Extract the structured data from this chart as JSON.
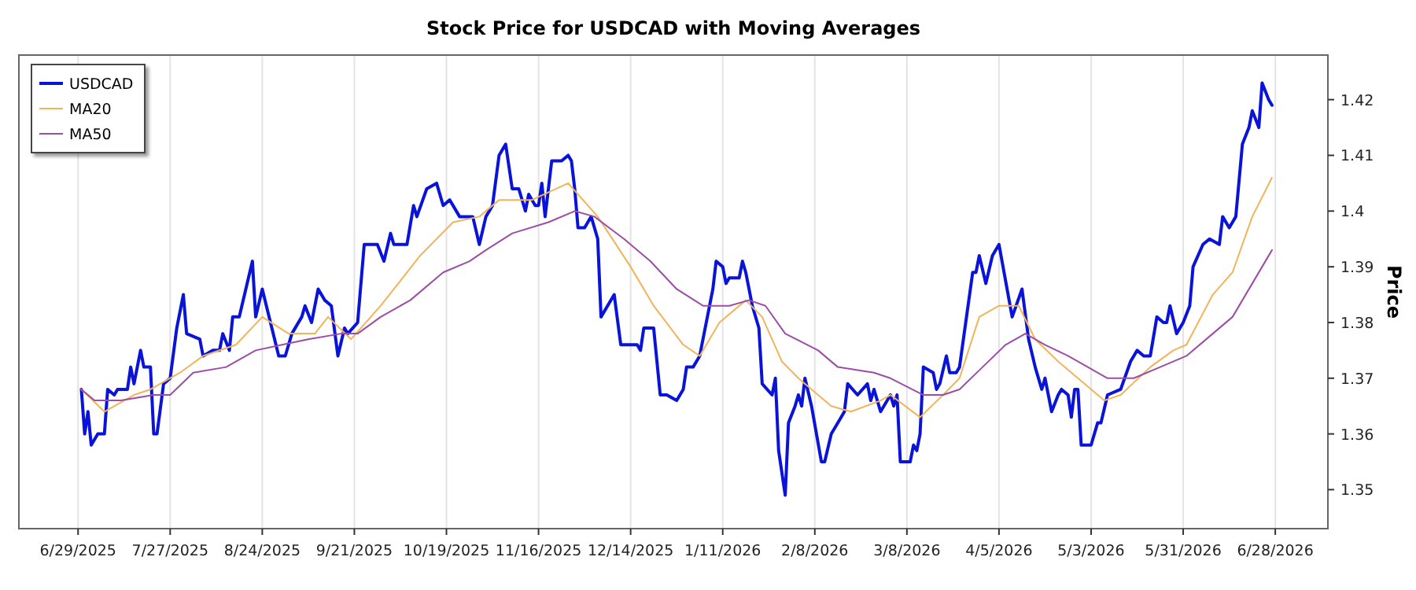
{
  "chart_data": {
    "type": "line",
    "title": "Stock Price for USDCAD with Moving Averages",
    "ylabel": "Price",
    "xlim": [
      "2025-06-11",
      "2026-07-14"
    ],
    "xticks": [
      {
        "value": "2025-06-29",
        "label": "6/29/2025"
      },
      {
        "value": "2025-07-27",
        "label": "7/27/2025"
      },
      {
        "value": "2025-08-24",
        "label": "8/24/2025"
      },
      {
        "value": "2025-09-21",
        "label": "9/21/2025"
      },
      {
        "value": "2025-10-19",
        "label": "10/19/2025"
      },
      {
        "value": "2025-11-16",
        "label": "11/16/2025"
      },
      {
        "value": "2025-12-14",
        "label": "12/14/2025"
      },
      {
        "value": "2026-01-11",
        "label": "1/11/2026"
      },
      {
        "value": "2026-02-08",
        "label": "2/8/2026"
      },
      {
        "value": "2026-03-08",
        "label": "3/8/2026"
      },
      {
        "value": "2026-04-05",
        "label": "4/5/2026"
      },
      {
        "value": "2026-05-03",
        "label": "5/3/2026"
      },
      {
        "value": "2026-05-31",
        "label": "5/31/2026"
      },
      {
        "value": "2026-06-28",
        "label": "6/28/2026"
      }
    ],
    "ylim": [
      1.343,
      1.428
    ],
    "yticks": [
      1.35,
      1.36,
      1.37,
      1.38,
      1.39,
      1.4,
      1.41,
      1.42
    ],
    "grid": "x",
    "legend": "top left",
    "marker": "none",
    "line_style": "solid",
    "series": [
      {
        "name": "USDCAD",
        "color": "#0a14d8",
        "x": [
          "2025-06-30",
          "2025-07-01",
          "2025-07-02",
          "2025-07-03",
          "2025-07-05",
          "2025-07-07",
          "2025-07-08",
          "2025-07-10",
          "2025-07-11",
          "2025-07-14",
          "2025-07-15",
          "2025-07-16",
          "2025-07-18",
          "2025-07-19",
          "2025-07-21",
          "2025-07-22",
          "2025-07-23",
          "2025-07-25",
          "2025-07-27",
          "2025-07-29",
          "2025-07-31",
          "2025-08-01",
          "2025-08-05",
          "2025-08-06",
          "2025-08-09",
          "2025-08-11",
          "2025-08-12",
          "2025-08-14",
          "2025-08-15",
          "2025-08-17",
          "2025-08-19",
          "2025-08-21",
          "2025-08-22",
          "2025-08-24",
          "2025-08-29",
          "2025-08-31",
          "2025-09-02",
          "2025-09-05",
          "2025-09-06",
          "2025-09-08",
          "2025-09-10",
          "2025-09-12",
          "2025-09-14",
          "2025-09-16",
          "2025-09-18",
          "2025-09-19",
          "2025-09-22",
          "2025-09-24",
          "2025-09-28",
          "2025-09-30",
          "2025-10-02",
          "2025-10-03",
          "2025-10-07",
          "2025-10-09",
          "2025-10-10",
          "2025-10-13",
          "2025-10-16",
          "2025-10-18",
          "2025-10-20",
          "2025-10-23",
          "2025-10-25",
          "2025-10-27",
          "2025-10-29",
          "2025-10-31",
          "2025-11-02",
          "2025-11-04",
          "2025-11-06",
          "2025-11-08",
          "2025-11-10",
          "2025-11-12",
          "2025-11-13",
          "2025-11-15",
          "2025-11-16",
          "2025-11-17",
          "2025-11-18",
          "2025-11-20",
          "2025-11-23",
          "2025-11-25",
          "2025-11-26",
          "2025-11-27",
          "2025-11-28",
          "2025-11-30",
          "2025-12-02",
          "2025-12-04",
          "2025-12-05",
          "2025-12-09",
          "2025-12-11",
          "2025-12-16",
          "2025-12-17",
          "2025-12-18",
          "2025-12-20",
          "2025-12-21",
          "2025-12-23",
          "2025-12-25",
          "2025-12-28",
          "2025-12-30",
          "2025-12-31",
          "2026-01-02",
          "2026-01-04",
          "2026-01-07",
          "2026-01-08",
          "2026-01-09",
          "2026-01-11",
          "2026-01-12",
          "2026-01-13",
          "2026-01-16",
          "2026-01-17",
          "2026-01-18",
          "2026-01-20",
          "2026-01-22",
          "2026-01-23",
          "2026-01-26",
          "2026-01-27",
          "2026-01-28",
          "2026-01-30",
          "2026-01-31",
          "2026-02-02",
          "2026-02-03",
          "2026-02-04",
          "2026-02-05",
          "2026-02-07",
          "2026-02-10",
          "2026-02-11",
          "2026-02-13",
          "2026-02-15",
          "2026-02-17",
          "2026-02-18",
          "2026-02-21",
          "2026-02-24",
          "2026-02-25",
          "2026-02-26",
          "2026-02-28",
          "2026-03-03",
          "2026-03-04",
          "2026-03-05",
          "2026-03-06",
          "2026-03-09",
          "2026-03-10",
          "2026-03-11",
          "2026-03-12",
          "2026-03-13",
          "2026-03-16",
          "2026-03-17",
          "2026-03-18",
          "2026-03-20",
          "2026-03-21",
          "2026-03-23",
          "2026-03-24",
          "2026-03-28",
          "2026-03-29",
          "2026-03-30",
          "2026-04-01",
          "2026-04-03",
          "2026-04-05",
          "2026-04-09",
          "2026-04-12",
          "2026-04-14",
          "2026-04-16",
          "2026-04-18",
          "2026-04-19",
          "2026-04-21",
          "2026-04-23",
          "2026-04-24",
          "2026-04-26",
          "2026-04-27",
          "2026-04-28",
          "2026-04-29",
          "2026-04-30",
          "2026-05-03",
          "2026-05-05",
          "2026-05-06",
          "2026-05-08",
          "2026-05-12",
          "2026-05-15",
          "2026-05-17",
          "2026-05-19",
          "2026-05-21",
          "2026-05-23",
          "2026-05-25",
          "2026-05-26",
          "2026-05-27",
          "2026-05-29",
          "2026-05-31",
          "2026-06-02",
          "2026-06-03",
          "2026-06-06",
          "2026-06-08",
          "2026-06-11",
          "2026-06-12",
          "2026-06-14",
          "2026-06-16",
          "2026-06-18",
          "2026-06-20",
          "2026-06-21",
          "2026-06-23",
          "2026-06-24",
          "2026-06-26",
          "2026-06-27"
        ],
        "values": [
          1.368,
          1.36,
          1.364,
          1.358,
          1.36,
          1.36,
          1.368,
          1.367,
          1.368,
          1.368,
          1.372,
          1.369,
          1.375,
          1.372,
          1.372,
          1.36,
          1.36,
          1.369,
          1.37,
          1.379,
          1.385,
          1.378,
          1.377,
          1.374,
          1.375,
          1.375,
          1.378,
          1.375,
          1.381,
          1.381,
          1.386,
          1.391,
          1.381,
          1.386,
          1.374,
          1.374,
          1.378,
          1.381,
          1.383,
          1.38,
          1.386,
          1.384,
          1.383,
          1.374,
          1.379,
          1.378,
          1.38,
          1.394,
          1.394,
          1.391,
          1.396,
          1.394,
          1.394,
          1.401,
          1.399,
          1.404,
          1.405,
          1.401,
          1.402,
          1.399,
          1.399,
          1.399,
          1.394,
          1.399,
          1.401,
          1.41,
          1.412,
          1.404,
          1.404,
          1.4,
          1.403,
          1.401,
          1.401,
          1.405,
          1.399,
          1.409,
          1.409,
          1.41,
          1.409,
          1.404,
          1.397,
          1.397,
          1.399,
          1.395,
          1.381,
          1.385,
          1.376,
          1.376,
          1.375,
          1.379,
          1.379,
          1.379,
          1.367,
          1.367,
          1.366,
          1.368,
          1.372,
          1.372,
          1.374,
          1.383,
          1.386,
          1.391,
          1.39,
          1.387,
          1.388,
          1.388,
          1.391,
          1.389,
          1.383,
          1.379,
          1.369,
          1.367,
          1.37,
          1.357,
          1.349,
          1.362,
          1.365,
          1.367,
          1.365,
          1.37,
          1.365,
          1.355,
          1.355,
          1.36,
          1.362,
          1.364,
          1.369,
          1.367,
          1.369,
          1.366,
          1.368,
          1.364,
          1.367,
          1.365,
          1.367,
          1.355,
          1.355,
          1.358,
          1.357,
          1.36,
          1.372,
          1.371,
          1.368,
          1.369,
          1.374,
          1.371,
          1.371,
          1.372,
          1.389,
          1.389,
          1.392,
          1.387,
          1.392,
          1.394,
          1.381,
          1.386,
          1.377,
          1.372,
          1.368,
          1.37,
          1.364,
          1.367,
          1.368,
          1.367,
          1.363,
          1.368,
          1.368,
          1.358,
          1.358,
          1.362,
          1.362,
          1.367,
          1.368,
          1.373,
          1.375,
          1.374,
          1.374,
          1.381,
          1.38,
          1.38,
          1.383,
          1.378,
          1.38,
          1.383,
          1.39,
          1.394,
          1.395,
          1.394,
          1.399,
          1.397,
          1.399,
          1.412,
          1.415,
          1.418,
          1.415,
          1.423,
          1.42,
          1.419
        ]
      },
      {
        "name": "MA20",
        "color": "#f2b45a",
        "x": [
          "2025-06-30",
          "2025-07-07",
          "2025-07-16",
          "2025-07-21",
          "2025-07-30",
          "2025-08-06",
          "2025-08-16",
          "2025-08-24",
          "2025-09-01",
          "2025-09-09",
          "2025-09-13",
          "2025-09-20",
          "2025-09-29",
          "2025-10-11",
          "2025-10-21",
          "2025-10-29",
          "2025-11-04",
          "2025-11-14",
          "2025-11-25",
          "2025-12-04",
          "2025-12-14",
          "2025-12-21",
          "2025-12-30",
          "2026-01-04",
          "2026-01-10",
          "2026-01-18",
          "2026-01-23",
          "2026-01-29",
          "2026-02-03",
          "2026-02-13",
          "2026-02-19",
          "2026-02-28",
          "2026-03-03",
          "2026-03-12",
          "2026-03-19",
          "2026-03-24",
          "2026-03-30",
          "2026-04-05",
          "2026-04-11",
          "2026-04-16",
          "2026-04-23",
          "2026-04-29",
          "2026-05-07",
          "2026-05-12",
          "2026-05-21",
          "2026-05-28",
          "2026-06-01",
          "2026-06-09",
          "2026-06-15",
          "2026-06-21",
          "2026-06-27"
        ],
        "values": [
          1.368,
          1.364,
          1.367,
          1.368,
          1.371,
          1.374,
          1.376,
          1.381,
          1.378,
          1.378,
          1.381,
          1.377,
          1.383,
          1.392,
          1.398,
          1.399,
          1.402,
          1.402,
          1.405,
          1.399,
          1.39,
          1.383,
          1.376,
          1.374,
          1.38,
          1.384,
          1.381,
          1.373,
          1.37,
          1.365,
          1.364,
          1.366,
          1.367,
          1.363,
          1.367,
          1.37,
          1.381,
          1.383,
          1.383,
          1.377,
          1.373,
          1.37,
          1.366,
          1.367,
          1.372,
          1.375,
          1.376,
          1.385,
          1.389,
          1.399,
          1.406
        ]
      },
      {
        "name": "MA50",
        "color": "#9c4ea6",
        "x": [
          "2025-06-30",
          "2025-07-04",
          "2025-07-12",
          "2025-07-22",
          "2025-07-27",
          "2025-08-03",
          "2025-08-13",
          "2025-08-22",
          "2025-08-30",
          "2025-09-07",
          "2025-09-17",
          "2025-09-22",
          "2025-09-29",
          "2025-10-08",
          "2025-10-18",
          "2025-10-26",
          "2025-10-31",
          "2025-11-08",
          "2025-11-19",
          "2025-11-27",
          "2025-12-03",
          "2025-12-12",
          "2025-12-20",
          "2025-12-28",
          "2026-01-05",
          "2026-01-13",
          "2026-01-19",
          "2026-01-24",
          "2026-01-30",
          "2026-02-09",
          "2026-02-15",
          "2026-02-26",
          "2026-03-03",
          "2026-03-13",
          "2026-03-19",
          "2026-03-24",
          "2026-03-31",
          "2026-04-07",
          "2026-04-13",
          "2026-04-19",
          "2026-04-26",
          "2026-05-02",
          "2026-05-08",
          "2026-05-16",
          "2026-05-24",
          "2026-06-01",
          "2026-06-09",
          "2026-06-15",
          "2026-06-21",
          "2026-06-27"
        ],
        "values": [
          1.368,
          1.366,
          1.366,
          1.367,
          1.367,
          1.371,
          1.372,
          1.375,
          1.376,
          1.377,
          1.378,
          1.378,
          1.381,
          1.384,
          1.389,
          1.391,
          1.393,
          1.396,
          1.398,
          1.4,
          1.399,
          1.395,
          1.391,
          1.386,
          1.383,
          1.383,
          1.384,
          1.383,
          1.378,
          1.375,
          1.372,
          1.371,
          1.37,
          1.367,
          1.367,
          1.368,
          1.372,
          1.376,
          1.378,
          1.376,
          1.374,
          1.372,
          1.37,
          1.37,
          1.372,
          1.374,
          1.378,
          1.381,
          1.387,
          1.393
        ]
      }
    ]
  }
}
